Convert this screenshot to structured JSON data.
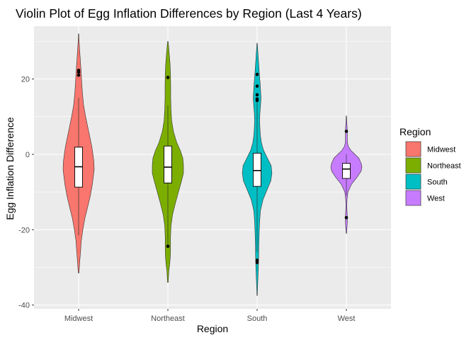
{
  "chart_data": {
    "type": "violin",
    "title": "Violin Plot of Egg Inflation Differences by Region (Last 4 Years)",
    "xlabel": "Region",
    "ylabel": "Egg Inflation Difference",
    "categories": [
      "Midwest",
      "Northeast",
      "South",
      "West"
    ],
    "ylim": [
      -41,
      34
    ],
    "yticks": [
      -40,
      -20,
      0,
      20
    ],
    "ytick_labels": [
      "-40",
      "-20",
      "0",
      "20"
    ],
    "grid": true,
    "legend": {
      "title": "Region",
      "placement": "right",
      "entries": [
        "Midwest",
        "Northeast",
        "South",
        "West"
      ]
    },
    "colors": {
      "Midwest": "#F8766D",
      "Northeast": "#7CAE00",
      "South": "#00BFC4",
      "West": "#C77CFF",
      "panel": "#EBEBEB",
      "grid": "#FFFFFF"
    },
    "series": [
      {
        "name": "Midwest",
        "violin_min": -31.5,
        "violin_max": 32,
        "density": [
          [
            -31.5,
            0.02
          ],
          [
            -28,
            0.08
          ],
          [
            -26,
            0.12
          ],
          [
            -23,
            0.17
          ],
          [
            -20,
            0.27
          ],
          [
            -17,
            0.4
          ],
          [
            -14,
            0.58
          ],
          [
            -11,
            0.75
          ],
          [
            -8,
            0.88
          ],
          [
            -6,
            0.94
          ],
          [
            -4,
            1.0
          ],
          [
            -2,
            0.98
          ],
          [
            0,
            0.92
          ],
          [
            2,
            0.85
          ],
          [
            4,
            0.75
          ],
          [
            7,
            0.6
          ],
          [
            10,
            0.45
          ],
          [
            13,
            0.32
          ],
          [
            16,
            0.25
          ],
          [
            19,
            0.2
          ],
          [
            22,
            0.16
          ],
          [
            25,
            0.11
          ],
          [
            28,
            0.06
          ],
          [
            30,
            0.03
          ],
          [
            32,
            0.01
          ]
        ],
        "box": {
          "q1": -8.7,
          "median": -3.3,
          "q3": 1.9,
          "whisker_low": -21.5,
          "whisker_high": 15
        },
        "outliers": [
          22.3,
          21.8,
          21.0
        ]
      },
      {
        "name": "Northeast",
        "violin_min": -34,
        "violin_max": 30,
        "density": [
          [
            -34,
            0.02
          ],
          [
            -31,
            0.06
          ],
          [
            -29,
            0.12
          ],
          [
            -27,
            0.16
          ],
          [
            -25,
            0.17
          ],
          [
            -22,
            0.17
          ],
          [
            -19,
            0.2
          ],
          [
            -16,
            0.3
          ],
          [
            -13,
            0.48
          ],
          [
            -10,
            0.68
          ],
          [
            -7,
            0.88
          ],
          [
            -5,
            1.0
          ],
          [
            -3,
            1.0
          ],
          [
            -1,
            0.96
          ],
          [
            1,
            0.8
          ],
          [
            3,
            0.58
          ],
          [
            6,
            0.36
          ],
          [
            9,
            0.24
          ],
          [
            12,
            0.2
          ],
          [
            15,
            0.18
          ],
          [
            18,
            0.18
          ],
          [
            21,
            0.17
          ],
          [
            24,
            0.14
          ],
          [
            27,
            0.08
          ],
          [
            29,
            0.04
          ],
          [
            30,
            0.01
          ]
        ],
        "box": {
          "q1": -7.6,
          "median": -3.4,
          "q3": 2.2,
          "whisker_low": -24.4,
          "whisker_high": 13
        },
        "outliers": [
          20.4,
          -24.4
        ]
      },
      {
        "name": "South",
        "violin_min": -37.5,
        "violin_max": 29.5,
        "density": [
          [
            -37.5,
            0.01
          ],
          [
            -34,
            0.04
          ],
          [
            -30,
            0.08
          ],
          [
            -27,
            0.1
          ],
          [
            -24,
            0.11
          ],
          [
            -21,
            0.13
          ],
          [
            -18,
            0.16
          ],
          [
            -15,
            0.21
          ],
          [
            -12,
            0.38
          ],
          [
            -9,
            0.68
          ],
          [
            -7,
            0.88
          ],
          [
            -5,
            0.95
          ],
          [
            -3,
            0.9
          ],
          [
            -1,
            0.66
          ],
          [
            1,
            0.42
          ],
          [
            3,
            0.28
          ],
          [
            5,
            0.21
          ],
          [
            7,
            0.18
          ],
          [
            9,
            0.16
          ],
          [
            11,
            0.18
          ],
          [
            13,
            0.22
          ],
          [
            15,
            0.25
          ],
          [
            17,
            0.22
          ],
          [
            19,
            0.19
          ],
          [
            21,
            0.15
          ],
          [
            24,
            0.1
          ],
          [
            27,
            0.05
          ],
          [
            29.5,
            0.01
          ]
        ],
        "box": {
          "q1": -8.5,
          "median": -4.3,
          "q3": 0.3,
          "whisker_low": -26,
          "whisker_high": 14
        },
        "outliers": [
          21.2,
          18.1,
          15.8,
          14.7,
          14.3,
          -28.1,
          -28.7
        ]
      },
      {
        "name": "West",
        "violin_min": -21,
        "violin_max": 10.2,
        "density": [
          [
            -21,
            0.01
          ],
          [
            -19.5,
            0.04
          ],
          [
            -18,
            0.06
          ],
          [
            -16.5,
            0.06
          ],
          [
            -15,
            0.04
          ],
          [
            -13.5,
            0.03
          ],
          [
            -12,
            0.04
          ],
          [
            -10,
            0.1
          ],
          [
            -8,
            0.32
          ],
          [
            -6,
            0.7
          ],
          [
            -4.5,
            0.94
          ],
          [
            -3.5,
            1.0
          ],
          [
            -2.5,
            0.96
          ],
          [
            -1,
            0.8
          ],
          [
            0,
            0.55
          ],
          [
            1,
            0.3
          ],
          [
            2,
            0.14
          ],
          [
            3,
            0.07
          ],
          [
            4,
            0.06
          ],
          [
            5.5,
            0.06
          ],
          [
            7,
            0.05
          ],
          [
            8.5,
            0.03
          ],
          [
            10.2,
            0.01
          ]
        ],
        "box": {
          "q1": -6.4,
          "median": -3.9,
          "q3": -2.4,
          "whisker_low": -11,
          "whisker_high": 0
        },
        "outliers": [
          6.1,
          -16.8
        ]
      }
    ]
  }
}
